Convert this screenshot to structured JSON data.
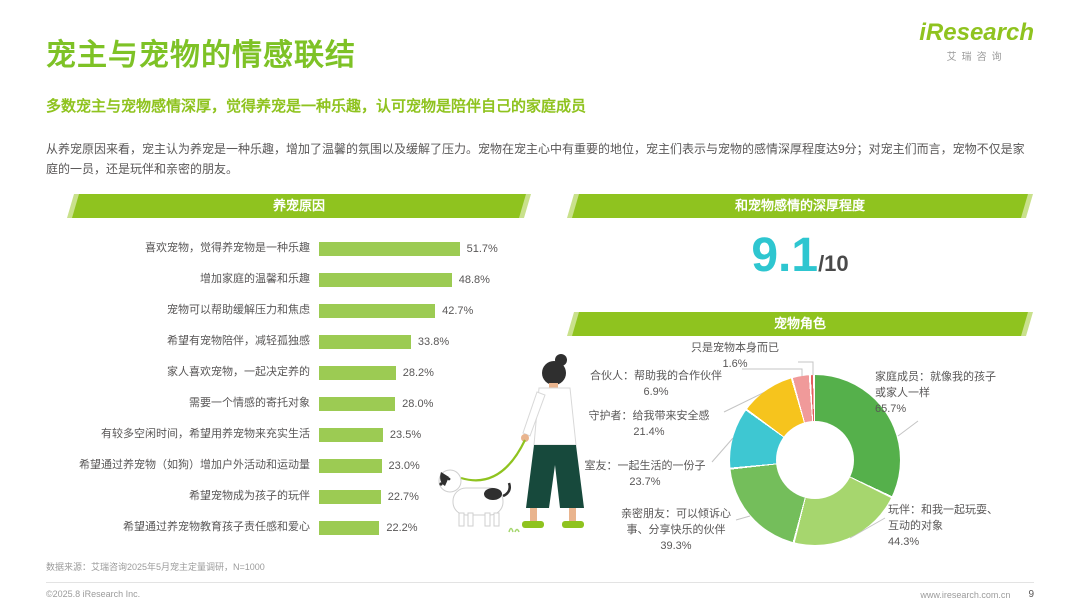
{
  "brand": {
    "logo_text": "iResearch",
    "logo_sub": "艾瑞咨询",
    "accent_color": "#8FC31F",
    "score_color": "#2EC6D0"
  },
  "header": {
    "title": "宠主与宠物的情感联结",
    "subtitle": "多数宠主与宠物感情深厚，觉得养宠是一种乐趣，认可宠物是陪伴自己的家庭成员",
    "body": "从养宠原因来看，宠主认为养宠是一种乐趣，增加了温馨的氛围以及缓解了压力。宠物在宠主心中有重要的地位，宠主们表示与宠物的感情深厚程度达9分；对宠主们而言，宠物不仅是家庭的一员，还是玩伴和亲密的朋友。"
  },
  "sections": {
    "score_header": "和宠物感情的深厚程度"
  },
  "score": {
    "value": "9.1",
    "out_of": "/10"
  },
  "chart_data": [
    {
      "type": "bar",
      "title": "养宠原因",
      "orientation": "horizontal",
      "unit": "%",
      "bar_color": "#9CCB53",
      "xlim": [
        0,
        55
      ],
      "categories": [
        "喜欢宠物，觉得养宠物是一种乐趣",
        "增加家庭的温馨和乐趣",
        "宠物可以帮助缓解压力和焦虑",
        "希望有宠物陪伴，减轻孤独感",
        "家人喜欢宠物，一起决定养的",
        "需要一个情感的寄托对象",
        "有较多空闲时间，希望用养宠物来充实生活",
        "希望通过养宠物（如狗）增加户外活动和运动量",
        "希望宠物成为孩子的玩伴",
        "希望通过养宠物教育孩子责任感和爱心"
      ],
      "values": [
        51.7,
        48.8,
        42.7,
        33.8,
        28.2,
        28.0,
        23.5,
        23.0,
        22.7,
        22.2
      ]
    },
    {
      "type": "pie",
      "title": "宠物角色",
      "donut": true,
      "segments": [
        {
          "label": "家庭成员：就像我的孩子或家人一样",
          "value": 65.7,
          "pct_label": "65.7%",
          "color": "#55B04B"
        },
        {
          "label": "玩伴：和我一起玩耍、互动的对象",
          "value": 44.3,
          "pct_label": "44.3%",
          "color": "#A6D66E"
        },
        {
          "label": "亲密朋友：可以倾诉心事、分享快乐的伙伴",
          "value": 39.3,
          "pct_label": "39.3%",
          "color": "#74BE5B"
        },
        {
          "label": "室友：一起生活的一份子",
          "value": 23.7,
          "pct_label": "23.7%",
          "color": "#3EC7D2"
        },
        {
          "label": "守护者：给我带来安全感",
          "value": 21.4,
          "pct_label": "21.4%",
          "color": "#F6C41D"
        },
        {
          "label": "合伙人：帮助我的合作伙伴",
          "value": 6.9,
          "pct_label": "6.9%",
          "color": "#F09A9A"
        },
        {
          "label": "只是宠物本身而已",
          "value": 1.6,
          "pct_label": "1.6%",
          "color": "#E4605E"
        }
      ]
    }
  ],
  "footer": {
    "source": "数据来源：艾瑞咨询2025年5月宠主定量调研，N=1000",
    "copyright": "©2025.8 iResearch Inc.",
    "website": "www.iresearch.com.cn",
    "page_number": "9"
  }
}
